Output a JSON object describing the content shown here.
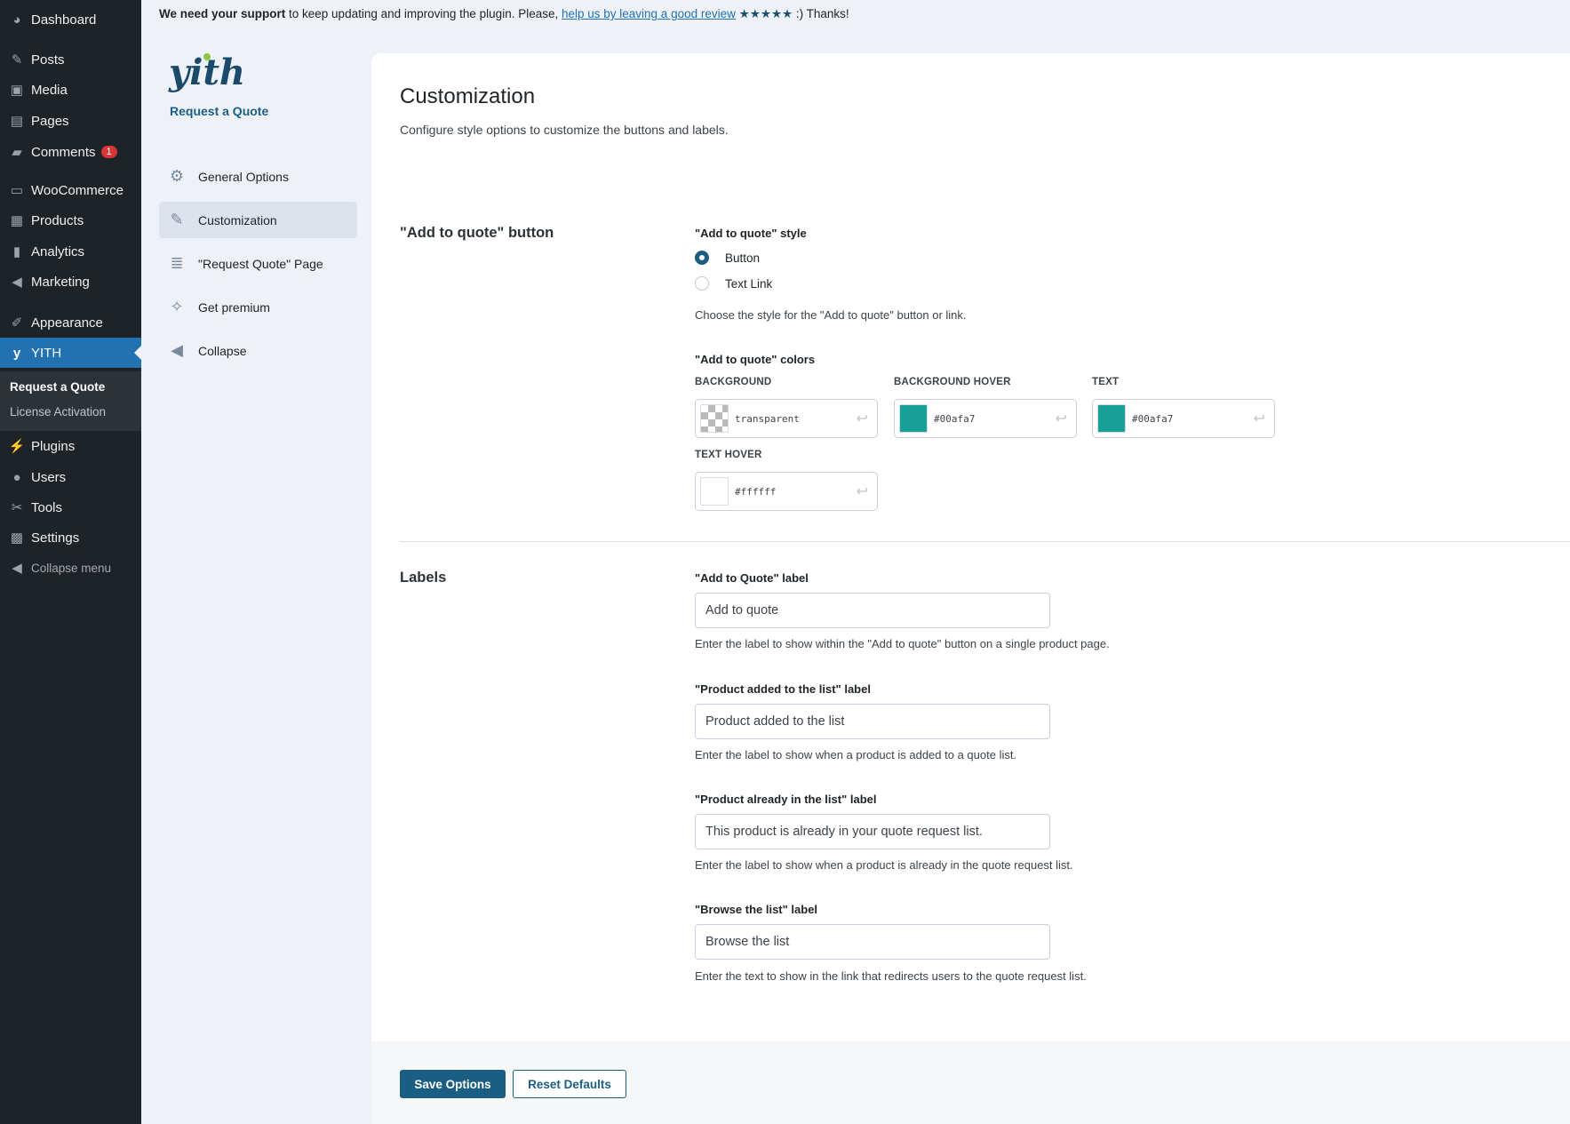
{
  "admin_menu": {
    "items": [
      {
        "label": "Dashboard",
        "icon": "dashboard-icon"
      },
      {
        "label": "Posts",
        "icon": "pin-icon"
      },
      {
        "label": "Media",
        "icon": "media-icon"
      },
      {
        "label": "Pages",
        "icon": "pages-icon"
      },
      {
        "label": "Comments",
        "icon": "comment-icon",
        "badge": "1"
      },
      {
        "label": "WooCommerce",
        "icon": "woo-icon"
      },
      {
        "label": "Products",
        "icon": "archive-icon"
      },
      {
        "label": "Analytics",
        "icon": "bar-chart-icon"
      },
      {
        "label": "Marketing",
        "icon": "megaphone-icon"
      },
      {
        "label": "Appearance",
        "icon": "brush-icon"
      },
      {
        "label": "YITH",
        "icon": "yith-icon",
        "active": true
      },
      {
        "label": "Plugins",
        "icon": "plug-icon"
      },
      {
        "label": "Users",
        "icon": "user-icon"
      },
      {
        "label": "Tools",
        "icon": "wrench-icon"
      },
      {
        "label": "Settings",
        "icon": "settings-icon"
      },
      {
        "label": "Collapse menu",
        "icon": "collapse-icon"
      }
    ],
    "submenu": [
      "Request a Quote",
      "License Activation"
    ]
  },
  "notice": {
    "bold": "We need your support",
    "text": " to keep updating and improving the plugin. Please, ",
    "link": "help us by leaving a good review",
    "stars": "★★★★★",
    "end": " :) Thanks!"
  },
  "plugin": {
    "logo": "yith",
    "name": "Request a Quote",
    "nav": [
      {
        "label": "General Options",
        "icon": "gear-icon"
      },
      {
        "label": "Customization",
        "icon": "brush-icon",
        "active": true
      },
      {
        "label": "\"Request Quote\" Page",
        "icon": "list-icon"
      },
      {
        "label": "Get premium",
        "icon": "sparkle-icon"
      },
      {
        "label": "Collapse",
        "icon": "arrow-left-circle-icon"
      }
    ]
  },
  "main": {
    "title": "Customization",
    "description": "Configure style options to customize the buttons and labels.",
    "button_section": {
      "title": "\"Add to quote\" button",
      "style_label": "\"Add to quote\" style",
      "style_options": [
        "Button",
        "Text Link"
      ],
      "style_selected": "Button",
      "style_help": "Choose the style for the \"Add to quote\" button or link.",
      "colors_label": "\"Add to quote\" colors",
      "colors": [
        {
          "label": "BACKGROUND",
          "value": "transparent",
          "swatch": "transparent"
        },
        {
          "label": "BACKGROUND HOVER",
          "value": "#00afa7",
          "swatch": "#16a097"
        },
        {
          "label": "TEXT",
          "value": "#00afa7",
          "swatch": "#16a097"
        },
        {
          "label": "TEXT HOVER",
          "value": "#ffffff",
          "swatch": "#ffffff"
        }
      ]
    },
    "labels_section": {
      "title": "Labels",
      "fields": [
        {
          "label": "\"Add to Quote\" label",
          "value": "Add to quote",
          "help": "Enter the label to show within the \"Add to quote\" button on a single product page."
        },
        {
          "label": "\"Product added to the list\" label",
          "value": "Product added to the list",
          "help": "Enter the label to show when a product is added to a quote list."
        },
        {
          "label": "\"Product already in the list\" label",
          "value": "This product is already in your quote request list.",
          "help": "Enter the label to show when a product is already in the quote request list."
        },
        {
          "label": "\"Browse the list\" label",
          "value": "Browse the list",
          "help": "Enter the text to show in the link that redirects users to the quote request list."
        }
      ]
    },
    "save_label": "Save Options",
    "reset_label": "Reset Defaults"
  }
}
